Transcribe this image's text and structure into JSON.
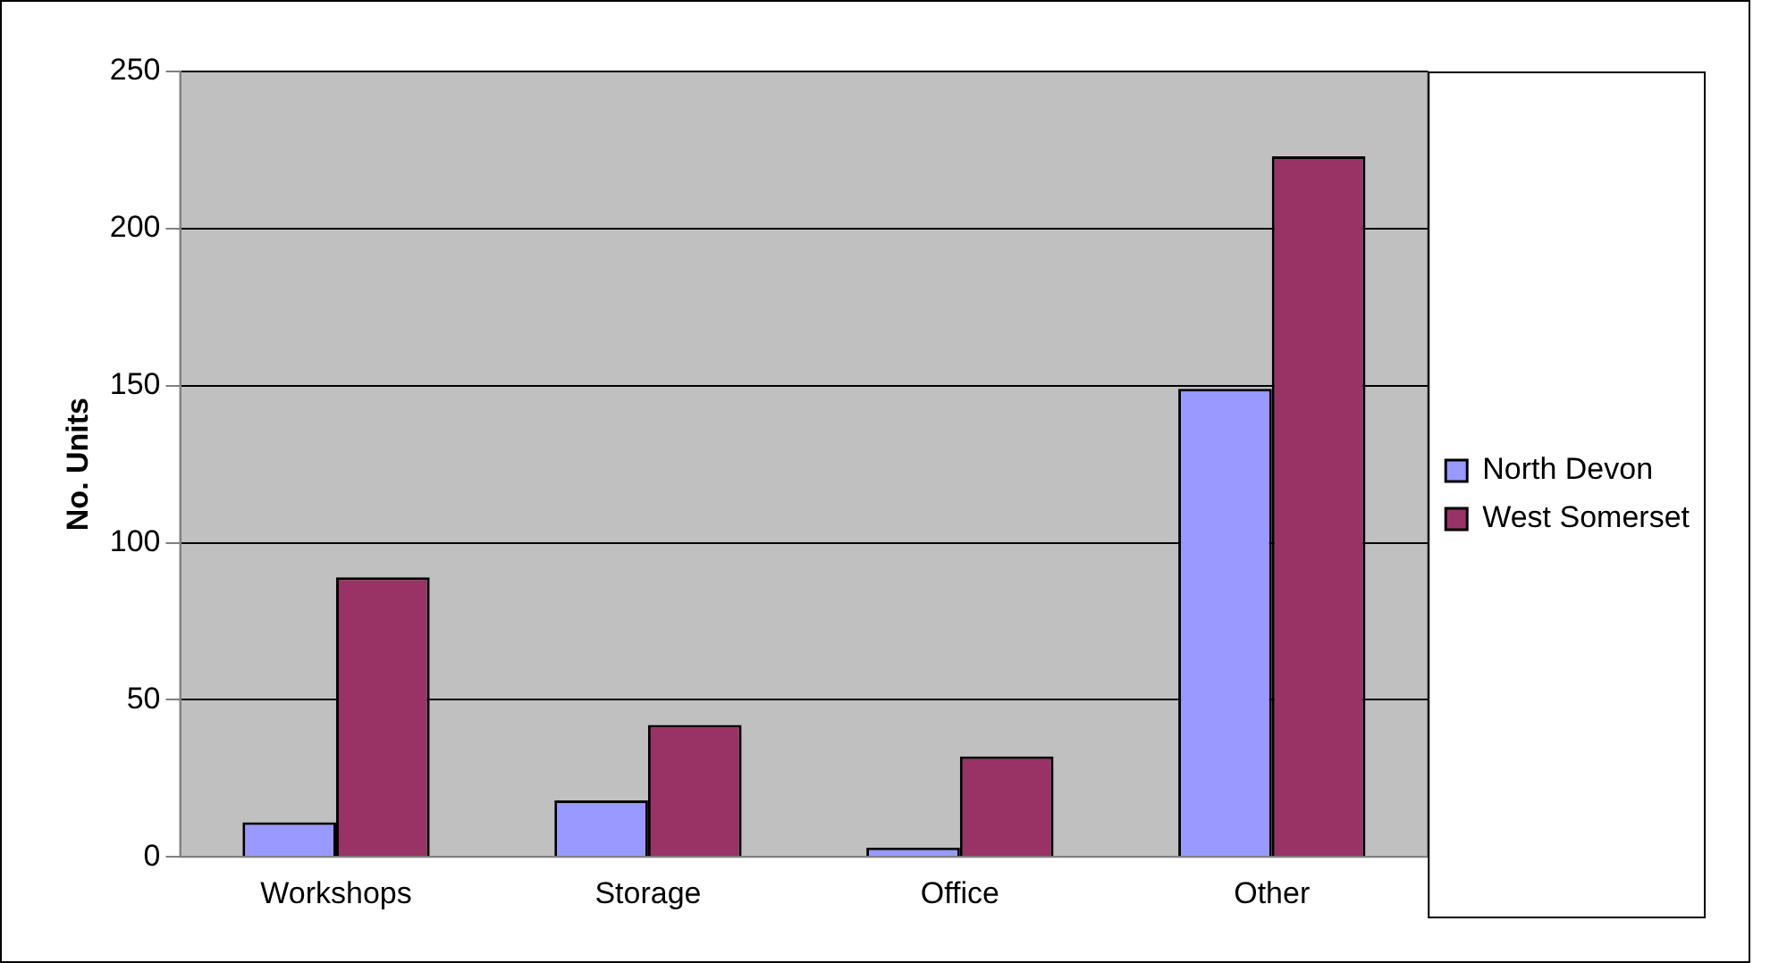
{
  "chart_data": {
    "type": "bar",
    "ylabel": "No. Units",
    "categories": [
      "Workshops",
      "Storage",
      "Office",
      "Other"
    ],
    "series": [
      {
        "name": "North Devon",
        "color": "#9999ff",
        "values": [
          11,
          18,
          3,
          149
        ]
      },
      {
        "name": "West Somerset",
        "color": "#993366",
        "values": [
          89,
          42,
          32,
          223
        ]
      }
    ],
    "ylim": [
      0,
      250
    ],
    "yticks": [
      0,
      50,
      100,
      150,
      200,
      250
    ],
    "grid": "y",
    "legend": "right"
  }
}
